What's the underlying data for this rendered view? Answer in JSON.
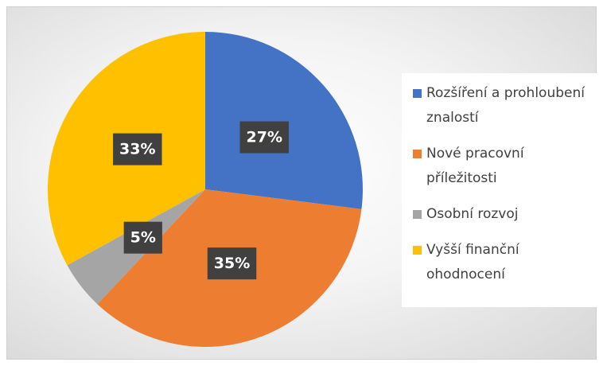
{
  "chart_data": {
    "type": "pie",
    "categories": [
      "Rozšíření a prohloubení znalostí",
      "Nové pracovní příležitosti",
      "Osobní rozvoj",
      "Vyšší finanční ohodnocení"
    ],
    "values": [
      27,
      35,
      5,
      33
    ],
    "value_labels": [
      "27%",
      "35%",
      "5%",
      "33%"
    ],
    "colors": [
      "#4472c4",
      "#ed7d31",
      "#a5a5a5",
      "#ffc000"
    ],
    "legend": "right"
  }
}
